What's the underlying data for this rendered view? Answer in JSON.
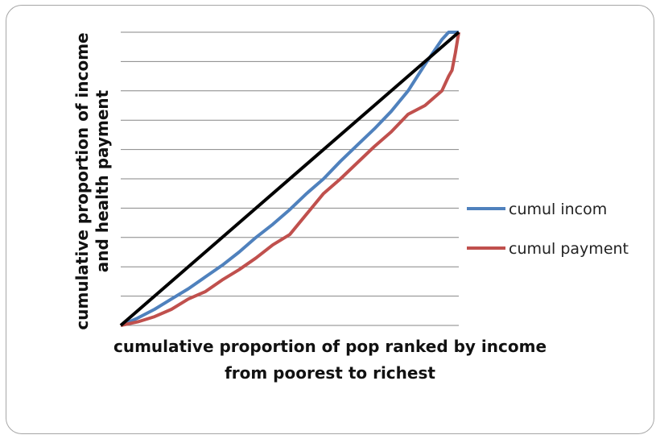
{
  "chart_data": {
    "type": "line",
    "title": "",
    "xlabel": [
      "cumulative proportion of pop ranked by income",
      "from poorest to richest"
    ],
    "ylabel": [
      "cumulative proportion of income",
      "and health payment"
    ],
    "xlim": [
      0,
      1
    ],
    "ylim": [
      0,
      1
    ],
    "grid": "horizontal",
    "gridline_count": 10,
    "legend": "right",
    "x": [
      0,
      0.05,
      0.1,
      0.15,
      0.2,
      0.25,
      0.3,
      0.35,
      0.4,
      0.45,
      0.5,
      0.55,
      0.6,
      0.65,
      0.7,
      0.75,
      0.8,
      0.85,
      0.9,
      0.95,
      0.97,
      0.98,
      0.99,
      1.0
    ],
    "equality_line": {
      "color": "#000000",
      "points": [
        [
          0,
          0
        ],
        [
          1,
          1
        ]
      ]
    },
    "series": [
      {
        "name": "cumul incom",
        "color": "#4f81bd",
        "values": [
          0,
          0.025,
          0.055,
          0.09,
          0.125,
          0.165,
          0.205,
          0.25,
          0.3,
          0.345,
          0.395,
          0.45,
          0.5,
          0.56,
          0.615,
          0.67,
          0.73,
          0.8,
          0.89,
          0.975,
          1.0,
          1.0,
          1.0,
          1.0
        ]
      },
      {
        "name": "cumul payment",
        "color": "#c0504d",
        "values": [
          0,
          0.012,
          0.03,
          0.055,
          0.09,
          0.115,
          0.155,
          0.19,
          0.23,
          0.275,
          0.31,
          0.38,
          0.45,
          0.5,
          0.555,
          0.61,
          0.66,
          0.72,
          0.75,
          0.8,
          0.85,
          0.87,
          0.93,
          1.0
        ]
      }
    ]
  }
}
